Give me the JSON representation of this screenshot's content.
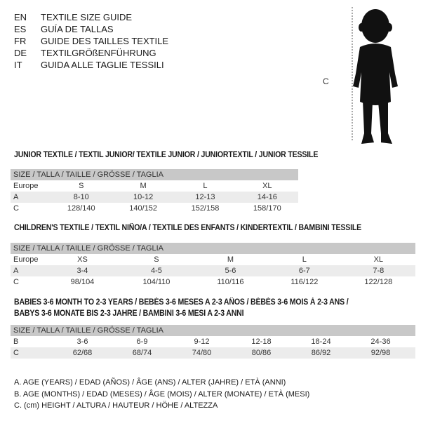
{
  "header": {
    "languages": [
      {
        "code": "EN",
        "text": "TEXTILE SIZE GUIDE"
      },
      {
        "code": "ES",
        "text": "GUÍA DE TALLAS"
      },
      {
        "code": "FR",
        "text": "GUIDE DES TAILLES TEXTILE"
      },
      {
        "code": "DE",
        "text": "TEXTILGRÖßENFÜHRUNG"
      },
      {
        "code": "IT",
        "text": "GUIDA ALLE TAGLIE TESSILI"
      }
    ]
  },
  "figure": {
    "label": "C"
  },
  "junior": {
    "title": "JUNIOR TEXTILE / TEXTIL JUNIOR/ TEXTILE JUNIOR / JUNIORTEXTIL / JUNIOR TESSILE",
    "header": "SIZE / TALLA / TAILLE / GRÖSSE / TAGLIA",
    "rows": [
      {
        "label": "Europe",
        "values": [
          "S",
          "M",
          "L",
          "XL"
        ]
      },
      {
        "label": "A",
        "values": [
          "8-10",
          "10-12",
          "12-13",
          "14-16"
        ]
      },
      {
        "label": "C",
        "values": [
          "128/140",
          "140/152",
          "152/158",
          "158/170"
        ]
      }
    ]
  },
  "children": {
    "title": "CHILDREN'S TEXTILE / TEXTIL NIÑO/A / TEXTILE DES ENFANTS / KINDERTEXTIL / BAMBINI TESSILE",
    "header": "SIZE / TALLA / TAILLE / GRÖSSE / TAGLIA",
    "rows": [
      {
        "label": "Europe",
        "values": [
          "XS",
          "S",
          "M",
          "L",
          "XL"
        ]
      },
      {
        "label": "A",
        "values": [
          "3-4",
          "4-5",
          "5-6",
          "6-7",
          "7-8"
        ]
      },
      {
        "label": "C",
        "values": [
          "98/104",
          "104/110",
          "110/116",
          "116/122",
          "122/128"
        ]
      }
    ]
  },
  "babies": {
    "title_line1": "BABIES 3-6 MONTH TO 2-3 YEARS / BEBÉS 3-6 MESES A 2-3 AÑOS / BÉBÉS 3-6 MOIS À 2-3 ANS /",
    "title_line2": "BABYS 3-6 MONATE BIS 2-3 JAHRE / BAMBINI 3-6 MESI A 2-3 ANNI",
    "header": "SIZE / TALLA / TAILLE / GRÖSSE / TAGLIA",
    "rows": [
      {
        "label": "B",
        "values": [
          "3-6",
          "6-9",
          "9-12",
          "12-18",
          "18-24",
          "24-36"
        ]
      },
      {
        "label": "C",
        "values": [
          "62/68",
          "68/74",
          "74/80",
          "80/86",
          "86/92",
          "92/98"
        ]
      }
    ]
  },
  "legend": [
    "A. AGE (YEARS) / EDAD (AÑOS) / ÂGE (ANS) / ALTER (JAHRE) / ETÀ (ANNI)",
    "B. AGE (MONTHS) / EDAD (MESES) / ÂGE (MOIS) / ALTER (MONATE) / ETÀ (MESI)",
    "C. (cm) HEIGHT / ALTURA / HAUTEUR / HÖHE / ALTEZZA"
  ]
}
